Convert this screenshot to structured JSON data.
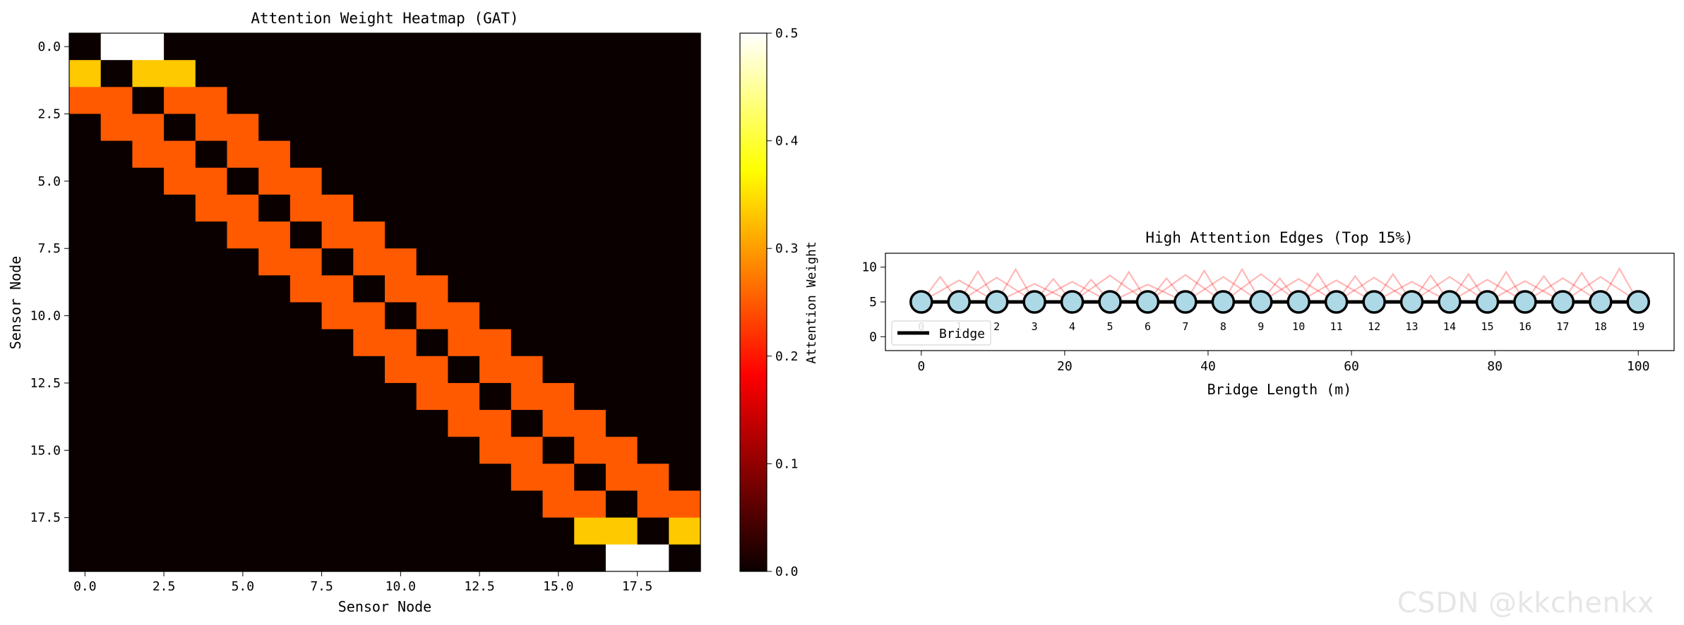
{
  "watermark": "CSDN @kkchenkx",
  "chart_data": [
    {
      "type": "heatmap",
      "title": "Attention Weight Heatmap (GAT)",
      "xlabel": "Sensor Node",
      "ylabel": "Sensor Node",
      "n": 20,
      "x_ticks": [
        "0.0",
        "2.5",
        "5.0",
        "7.5",
        "10.0",
        "12.5",
        "15.0",
        "17.5"
      ],
      "y_ticks": [
        "0.0",
        "2.5",
        "5.0",
        "7.5",
        "10.0",
        "12.5",
        "15.0",
        "17.5"
      ],
      "colorbar": {
        "label": "Attention Weight",
        "range": [
          0,
          0.5
        ],
        "ticks": [
          "0.0",
          "0.1",
          "0.2",
          "0.3",
          "0.4",
          "0.5"
        ]
      },
      "values": [
        [
          0,
          0.5,
          0.5,
          0,
          0,
          0,
          0,
          0,
          0,
          0,
          0,
          0,
          0,
          0,
          0,
          0,
          0,
          0,
          0,
          0
        ],
        [
          0.333,
          0,
          0.333,
          0.333,
          0,
          0,
          0,
          0,
          0,
          0,
          0,
          0,
          0,
          0,
          0,
          0,
          0,
          0,
          0,
          0
        ],
        [
          0.25,
          0.25,
          0,
          0.25,
          0.25,
          0,
          0,
          0,
          0,
          0,
          0,
          0,
          0,
          0,
          0,
          0,
          0,
          0,
          0,
          0
        ],
        [
          0,
          0.25,
          0.25,
          0,
          0.25,
          0.25,
          0,
          0,
          0,
          0,
          0,
          0,
          0,
          0,
          0,
          0,
          0,
          0,
          0,
          0
        ],
        [
          0,
          0,
          0.25,
          0.25,
          0,
          0.25,
          0.25,
          0,
          0,
          0,
          0,
          0,
          0,
          0,
          0,
          0,
          0,
          0,
          0,
          0
        ],
        [
          0,
          0,
          0,
          0.25,
          0.25,
          0,
          0.25,
          0.25,
          0,
          0,
          0,
          0,
          0,
          0,
          0,
          0,
          0,
          0,
          0,
          0
        ],
        [
          0,
          0,
          0,
          0,
          0.25,
          0.25,
          0,
          0.25,
          0.25,
          0,
          0,
          0,
          0,
          0,
          0,
          0,
          0,
          0,
          0,
          0
        ],
        [
          0,
          0,
          0,
          0,
          0,
          0.25,
          0.25,
          0,
          0.25,
          0.25,
          0,
          0,
          0,
          0,
          0,
          0,
          0,
          0,
          0,
          0
        ],
        [
          0,
          0,
          0,
          0,
          0,
          0,
          0.25,
          0.25,
          0,
          0.25,
          0.25,
          0,
          0,
          0,
          0,
          0,
          0,
          0,
          0,
          0
        ],
        [
          0,
          0,
          0,
          0,
          0,
          0,
          0,
          0.25,
          0.25,
          0,
          0.25,
          0.25,
          0,
          0,
          0,
          0,
          0,
          0,
          0,
          0
        ],
        [
          0,
          0,
          0,
          0,
          0,
          0,
          0,
          0,
          0.25,
          0.25,
          0,
          0.25,
          0.25,
          0,
          0,
          0,
          0,
          0,
          0,
          0
        ],
        [
          0,
          0,
          0,
          0,
          0,
          0,
          0,
          0,
          0,
          0.25,
          0.25,
          0,
          0.25,
          0.25,
          0,
          0,
          0,
          0,
          0,
          0
        ],
        [
          0,
          0,
          0,
          0,
          0,
          0,
          0,
          0,
          0,
          0,
          0.25,
          0.25,
          0,
          0.25,
          0.25,
          0,
          0,
          0,
          0,
          0
        ],
        [
          0,
          0,
          0,
          0,
          0,
          0,
          0,
          0,
          0,
          0,
          0,
          0.25,
          0.25,
          0,
          0.25,
          0.25,
          0,
          0,
          0,
          0
        ],
        [
          0,
          0,
          0,
          0,
          0,
          0,
          0,
          0,
          0,
          0,
          0,
          0,
          0.25,
          0.25,
          0,
          0.25,
          0.25,
          0,
          0,
          0
        ],
        [
          0,
          0,
          0,
          0,
          0,
          0,
          0,
          0,
          0,
          0,
          0,
          0,
          0,
          0.25,
          0.25,
          0,
          0.25,
          0.25,
          0,
          0
        ],
        [
          0,
          0,
          0,
          0,
          0,
          0,
          0,
          0,
          0,
          0,
          0,
          0,
          0,
          0,
          0.25,
          0.25,
          0,
          0.25,
          0.25,
          0
        ],
        [
          0,
          0,
          0,
          0,
          0,
          0,
          0,
          0,
          0,
          0,
          0,
          0,
          0,
          0,
          0,
          0.25,
          0.25,
          0,
          0.25,
          0.25
        ],
        [
          0,
          0,
          0,
          0,
          0,
          0,
          0,
          0,
          0,
          0,
          0,
          0,
          0,
          0,
          0,
          0,
          0.333,
          0.333,
          0,
          0.333
        ],
        [
          0,
          0,
          0,
          0,
          0,
          0,
          0,
          0,
          0,
          0,
          0,
          0,
          0,
          0,
          0,
          0,
          0,
          0.5,
          0.5,
          0
        ]
      ]
    },
    {
      "type": "line",
      "title": "High Attention Edges (Top 15%)",
      "xlabel": "Bridge Length (m)",
      "ylabel": "",
      "xlim": [
        -5,
        105
      ],
      "ylim": [
        -2,
        12
      ],
      "x_ticks": [
        0,
        20,
        40,
        60,
        80,
        100
      ],
      "y_ticks": [
        0,
        5,
        10
      ],
      "legend": {
        "label": "Bridge",
        "position": "lower-left"
      },
      "bridge": {
        "x": [
          0,
          100
        ],
        "y": [
          5,
          5
        ]
      },
      "nodes": {
        "x": [
          0,
          5.26,
          10.53,
          15.79,
          21.05,
          26.32,
          31.58,
          36.84,
          42.11,
          47.37,
          52.63,
          57.89,
          63.16,
          68.42,
          73.68,
          78.95,
          84.21,
          89.47,
          94.74,
          100
        ],
        "y": 5,
        "labels": [
          "0",
          "1",
          "2",
          "3",
          "4",
          "5",
          "6",
          "7",
          "8",
          "9",
          "10",
          "11",
          "12",
          "13",
          "14",
          "15",
          "16",
          "17",
          "18",
          "19"
        ],
        "fill": "#add8e6"
      },
      "edge_color": "#ff0000",
      "edges": [
        [
          0,
          1,
          8.6
        ],
        [
          1,
          2,
          9.4
        ],
        [
          0,
          2,
          8.1
        ],
        [
          2,
          3,
          9.7
        ],
        [
          1,
          3,
          8.5
        ],
        [
          3,
          4,
          8.3
        ],
        [
          2,
          4,
          7.6
        ],
        [
          4,
          5,
          8.2
        ],
        [
          3,
          5,
          7.9
        ],
        [
          5,
          6,
          9.3
        ],
        [
          4,
          6,
          8.8
        ],
        [
          6,
          7,
          8.4
        ],
        [
          5,
          7,
          7.5
        ],
        [
          7,
          8,
          9.5
        ],
        [
          6,
          8,
          8.9
        ],
        [
          8,
          9,
          9.7
        ],
        [
          7,
          9,
          8.6
        ],
        [
          9,
          10,
          8.4
        ],
        [
          8,
          10,
          9.0
        ],
        [
          10,
          11,
          9.1
        ],
        [
          9,
          11,
          8.3
        ],
        [
          11,
          12,
          8.7
        ],
        [
          10,
          12,
          8.1
        ],
        [
          12,
          13,
          9.0
        ],
        [
          11,
          13,
          8.5
        ],
        [
          13,
          14,
          8.8
        ],
        [
          12,
          14,
          7.9
        ],
        [
          14,
          15,
          9.0
        ],
        [
          13,
          15,
          8.6
        ],
        [
          15,
          16,
          9.3
        ],
        [
          14,
          16,
          8.2
        ],
        [
          16,
          17,
          8.7
        ],
        [
          15,
          17,
          8.0
        ],
        [
          17,
          18,
          9.2
        ],
        [
          16,
          18,
          8.4
        ],
        [
          18,
          19,
          9.8
        ],
        [
          17,
          19,
          8.6
        ]
      ]
    }
  ]
}
